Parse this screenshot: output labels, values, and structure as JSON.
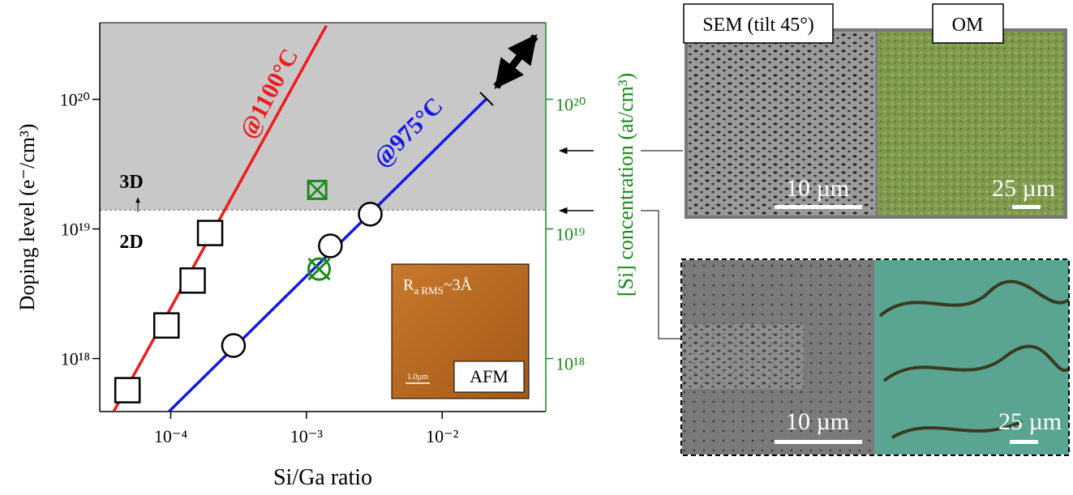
{
  "chart_data": {
    "type": "scatter",
    "xlabel": "Si/Ga ratio",
    "ylabel": "Doping level (e⁻/cm³)",
    "y2label": "[Si] concentration (at/cm³)",
    "xscale": "log",
    "yscale": "log",
    "xlim": [
      3e-05,
      0.058
    ],
    "ylim": [
      3.9e+17,
      3.9e+20
    ],
    "y2lim": [
      3.9e+17,
      3.9e+20
    ],
    "xticks": [
      {
        "value": 0.0001,
        "label": "10⁻⁴"
      },
      {
        "value": 0.001,
        "label": "10⁻³"
      },
      {
        "value": 0.01,
        "label": "10⁻²"
      }
    ],
    "yticks": [
      {
        "value": 1e+18,
        "label": "10¹⁸"
      },
      {
        "value": 1e+19,
        "label": "10¹⁹"
      },
      {
        "value": 1e+20,
        "label": "10²⁰"
      }
    ],
    "y2ticks": [
      {
        "value": 1e+18,
        "label": "10¹⁸"
      },
      {
        "value": 1e+19,
        "label": "10¹⁹"
      },
      {
        "value": 1e+20,
        "label": "10²⁰"
      }
    ],
    "y2color": "#1a8a1a",
    "threshold": 1.4e+19,
    "shade_color": "#c8c8c8",
    "series": [
      {
        "marker": "line",
        "color": "#ee1c1c",
        "x": [
          3.8e-05,
          0.0014
        ],
        "values": [
          3.9e+17,
          3.7e+20
        ]
      },
      {
        "marker": "line",
        "color": "#1616e6",
        "x": [
          9.7e-05,
          0.021
        ],
        "values": [
          3.9e+17,
          1e+20
        ]
      },
      {
        "marker": "square",
        "color": "#000000",
        "x": [
          4.8e-05,
          9.3e-05,
          0.000145,
          0.000195
        ],
        "values": [
          5.7e+17,
          1.8e+18,
          4e+18,
          9.3e+18
        ]
      },
      {
        "marker": "circle",
        "color": "#000000",
        "x": [
          0.00029,
          0.0015,
          0.00295
        ],
        "values": [
          1.26e+18,
          7.4e+18,
          1.3e+19
        ]
      },
      {
        "marker": "crossed-circle",
        "color": "#1a8a1a",
        "x": [
          0.00124
        ],
        "values": [
          4.9e+18
        ]
      },
      {
        "marker": "crossed-square",
        "color": "#1a8a1a",
        "x": [
          0.0012
        ],
        "values": [
          2e+19
        ]
      }
    ],
    "annotations": [
      {
        "text": "@1100°C",
        "color": "#ee1c1c"
      },
      {
        "text": "@975°C",
        "color": "#1616e6"
      },
      {
        "text": "3D",
        "color": "#000000"
      },
      {
        "text": "2D",
        "color": "#000000"
      }
    ]
  },
  "afm": {
    "r": "R",
    "sub": "a RMS",
    "rest": "~3Å",
    "scale": "1.0µm",
    "label": "AFM"
  },
  "top_panel": {
    "sem_label": "SEM (tilt 45°)",
    "om_label": "OM",
    "sem_scale": "10 µm",
    "om_scale": "25 µm"
  },
  "bottom_panel": {
    "sem_scale": "10 µm",
    "om_scale": "25 µm"
  }
}
